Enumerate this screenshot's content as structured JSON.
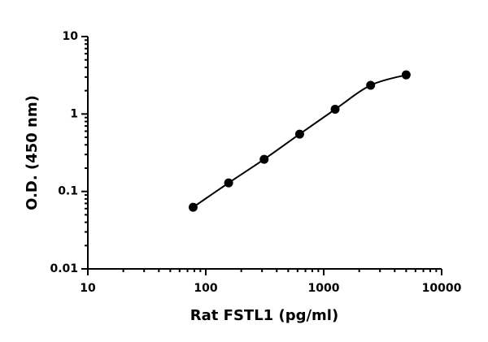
{
  "chart_data": {
    "type": "scatter",
    "x_label": "Rat FSTL1 (pg/ml)",
    "y_label": "O.D. (450 nm)",
    "x": [
      78.125,
      156.25,
      312.5,
      625,
      1250,
      2500,
      5000
    ],
    "values": [
      0.0625,
      0.129,
      0.26,
      0.55,
      1.15,
      2.35,
      3.2
    ],
    "color": "#000000",
    "x_log": true,
    "y_log": true,
    "fit_curve": true,
    "xlim": [
      10,
      10000
    ],
    "xticks": [
      10,
      100,
      1000,
      10000
    ],
    "ylim": [
      0.01,
      10
    ],
    "yticks": [
      0.01,
      0.1,
      1,
      10
    ]
  }
}
